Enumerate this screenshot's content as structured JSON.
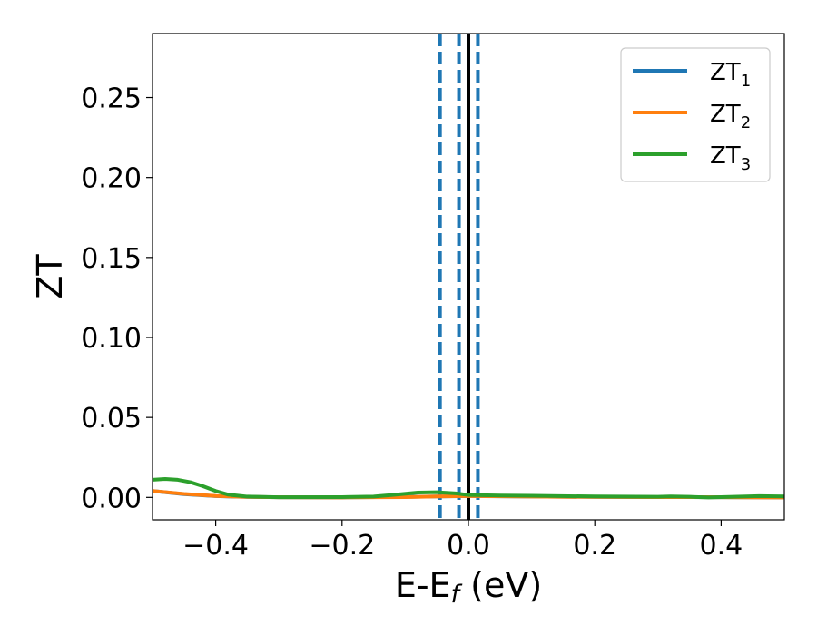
{
  "chart_data": {
    "type": "line",
    "title": "",
    "xlabel": {
      "base": "E-E",
      "subscript": "f",
      "suffix": " (eV)"
    },
    "ylabel": "ZT",
    "xlim": [
      -0.5,
      0.5
    ],
    "ylim": [
      -0.014,
      0.29
    ],
    "x_ticks": [
      -0.4,
      -0.2,
      0.0,
      0.2,
      0.4
    ],
    "x_tick_labels": [
      "−0.4",
      "−0.2",
      "0.0",
      "0.2",
      "0.4"
    ],
    "y_ticks": [
      0.0,
      0.05,
      0.1,
      0.15,
      0.2,
      0.25
    ],
    "y_tick_labels": [
      "0.00",
      "0.05",
      "0.10",
      "0.15",
      "0.20",
      "0.25"
    ],
    "grid": false,
    "legend_position": "top-right",
    "series": [
      {
        "name": "ZT",
        "name_subscript": "1",
        "color": "#1f77b4",
        "x": [
          -0.5,
          -0.45,
          -0.4,
          -0.35,
          -0.3,
          -0.2,
          -0.1,
          -0.05,
          0.0,
          0.1,
          0.2,
          0.3,
          0.4,
          0.5
        ],
        "y": [
          0.004,
          0.002,
          0.0008,
          0.0003,
          0.0001,
          0.0,
          0.0003,
          0.0006,
          0.0008,
          0.0005,
          0.0003,
          0.0002,
          0.0001,
          0.0
        ]
      },
      {
        "name": "ZT",
        "name_subscript": "2",
        "color": "#ff7f0e",
        "x": [
          -0.5,
          -0.45,
          -0.4,
          -0.35,
          -0.3,
          -0.2,
          -0.1,
          -0.05,
          0.0,
          0.1,
          0.2,
          0.3,
          0.4,
          0.5
        ],
        "y": [
          0.004,
          0.0022,
          0.0009,
          0.0003,
          0.0001,
          0.0,
          0.0002,
          0.0006,
          0.0009,
          0.0005,
          0.0003,
          0.0002,
          0.0001,
          0.0
        ]
      },
      {
        "name": "ZT",
        "name_subscript": "3",
        "color": "#2ca02c",
        "x": [
          -0.5,
          -0.48,
          -0.46,
          -0.44,
          -0.42,
          -0.4,
          -0.38,
          -0.35,
          -0.3,
          -0.2,
          -0.15,
          -0.12,
          -0.08,
          -0.05,
          -0.02,
          0.0,
          0.05,
          0.1,
          0.2,
          0.3,
          0.32,
          0.35,
          0.38,
          0.42,
          0.46,
          0.5
        ],
        "y": [
          0.011,
          0.0115,
          0.011,
          0.0095,
          0.007,
          0.004,
          0.0017,
          0.0005,
          0.0001,
          0.0002,
          0.0005,
          0.0015,
          0.003,
          0.0032,
          0.0025,
          0.0015,
          0.0012,
          0.001,
          0.0006,
          0.0004,
          0.0006,
          0.0004,
          0.0,
          0.0004,
          0.0008,
          0.0006
        ]
      }
    ],
    "vlines": [
      {
        "x": -0.045,
        "style": "dashed",
        "color": "#1f77b4"
      },
      {
        "x": -0.015,
        "style": "dashed",
        "color": "#1f77b4"
      },
      {
        "x": 0.015,
        "style": "dashed",
        "color": "#1f77b4"
      },
      {
        "x": 0.0,
        "style": "solid",
        "color": "#000000"
      }
    ]
  }
}
